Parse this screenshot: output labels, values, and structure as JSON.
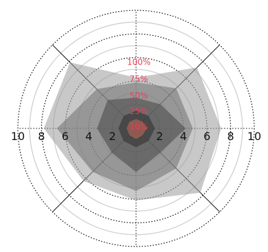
{
  "chart_data": {
    "type": "radar",
    "radial_range": [
      0,
      10
    ],
    "spokes": 8,
    "rings": [
      2,
      4,
      6,
      8,
      10
    ],
    "x_tick_labels": [
      {
        "value": -10,
        "text": "10"
      },
      {
        "value": -8,
        "text": "8"
      },
      {
        "value": -6,
        "text": "6"
      },
      {
        "value": -4,
        "text": "4"
      },
      {
        "value": -2,
        "text": "2"
      },
      {
        "value": 2,
        "text": "2"
      },
      {
        "value": 4,
        "text": "4"
      },
      {
        "value": 6,
        "text": "6"
      },
      {
        "value": 8,
        "text": "8"
      },
      {
        "value": 10,
        "text": "10"
      }
    ],
    "percent_labels": [
      {
        "text": "100%",
        "r": 5.6
      },
      {
        "text": "75%",
        "r": 4.2
      },
      {
        "text": "50%",
        "r": 2.75
      },
      {
        "text": "25%",
        "r": 1.45
      },
      {
        "text": "10%",
        "r": 0.15
      }
    ],
    "series": [
      {
        "values": [
          4.3,
          7.3,
          7.2,
          7.7,
          6.1,
          6.3,
          7.8,
          7.9
        ],
        "color": "#9a9a9a",
        "opacity": 0.55
      },
      {
        "values": [
          3.9,
          4.8,
          4.8,
          4.8,
          5.3,
          5.2,
          6.7,
          4.7
        ],
        "color": "#777777",
        "opacity": 0.6
      },
      {
        "values": [
          2.6,
          2.9,
          4.2,
          2.9,
          3.7,
          2.9,
          3.3,
          3.4
        ],
        "color": "#4c4c4c",
        "opacity": 0.6
      },
      {
        "values": [
          1.5,
          1.5,
          1.6,
          1.5,
          1.6,
          1.5,
          1.5,
          1.5
        ],
        "color": "#3a3a3a",
        "opacity": 0.7
      },
      {
        "values": [
          0.8,
          0.8,
          0.9,
          0.8,
          0.9,
          0.8,
          0.8,
          0.8
        ],
        "color": "#c86a5a",
        "opacity": 0.55
      }
    ],
    "grid": true,
    "legend": "none"
  }
}
